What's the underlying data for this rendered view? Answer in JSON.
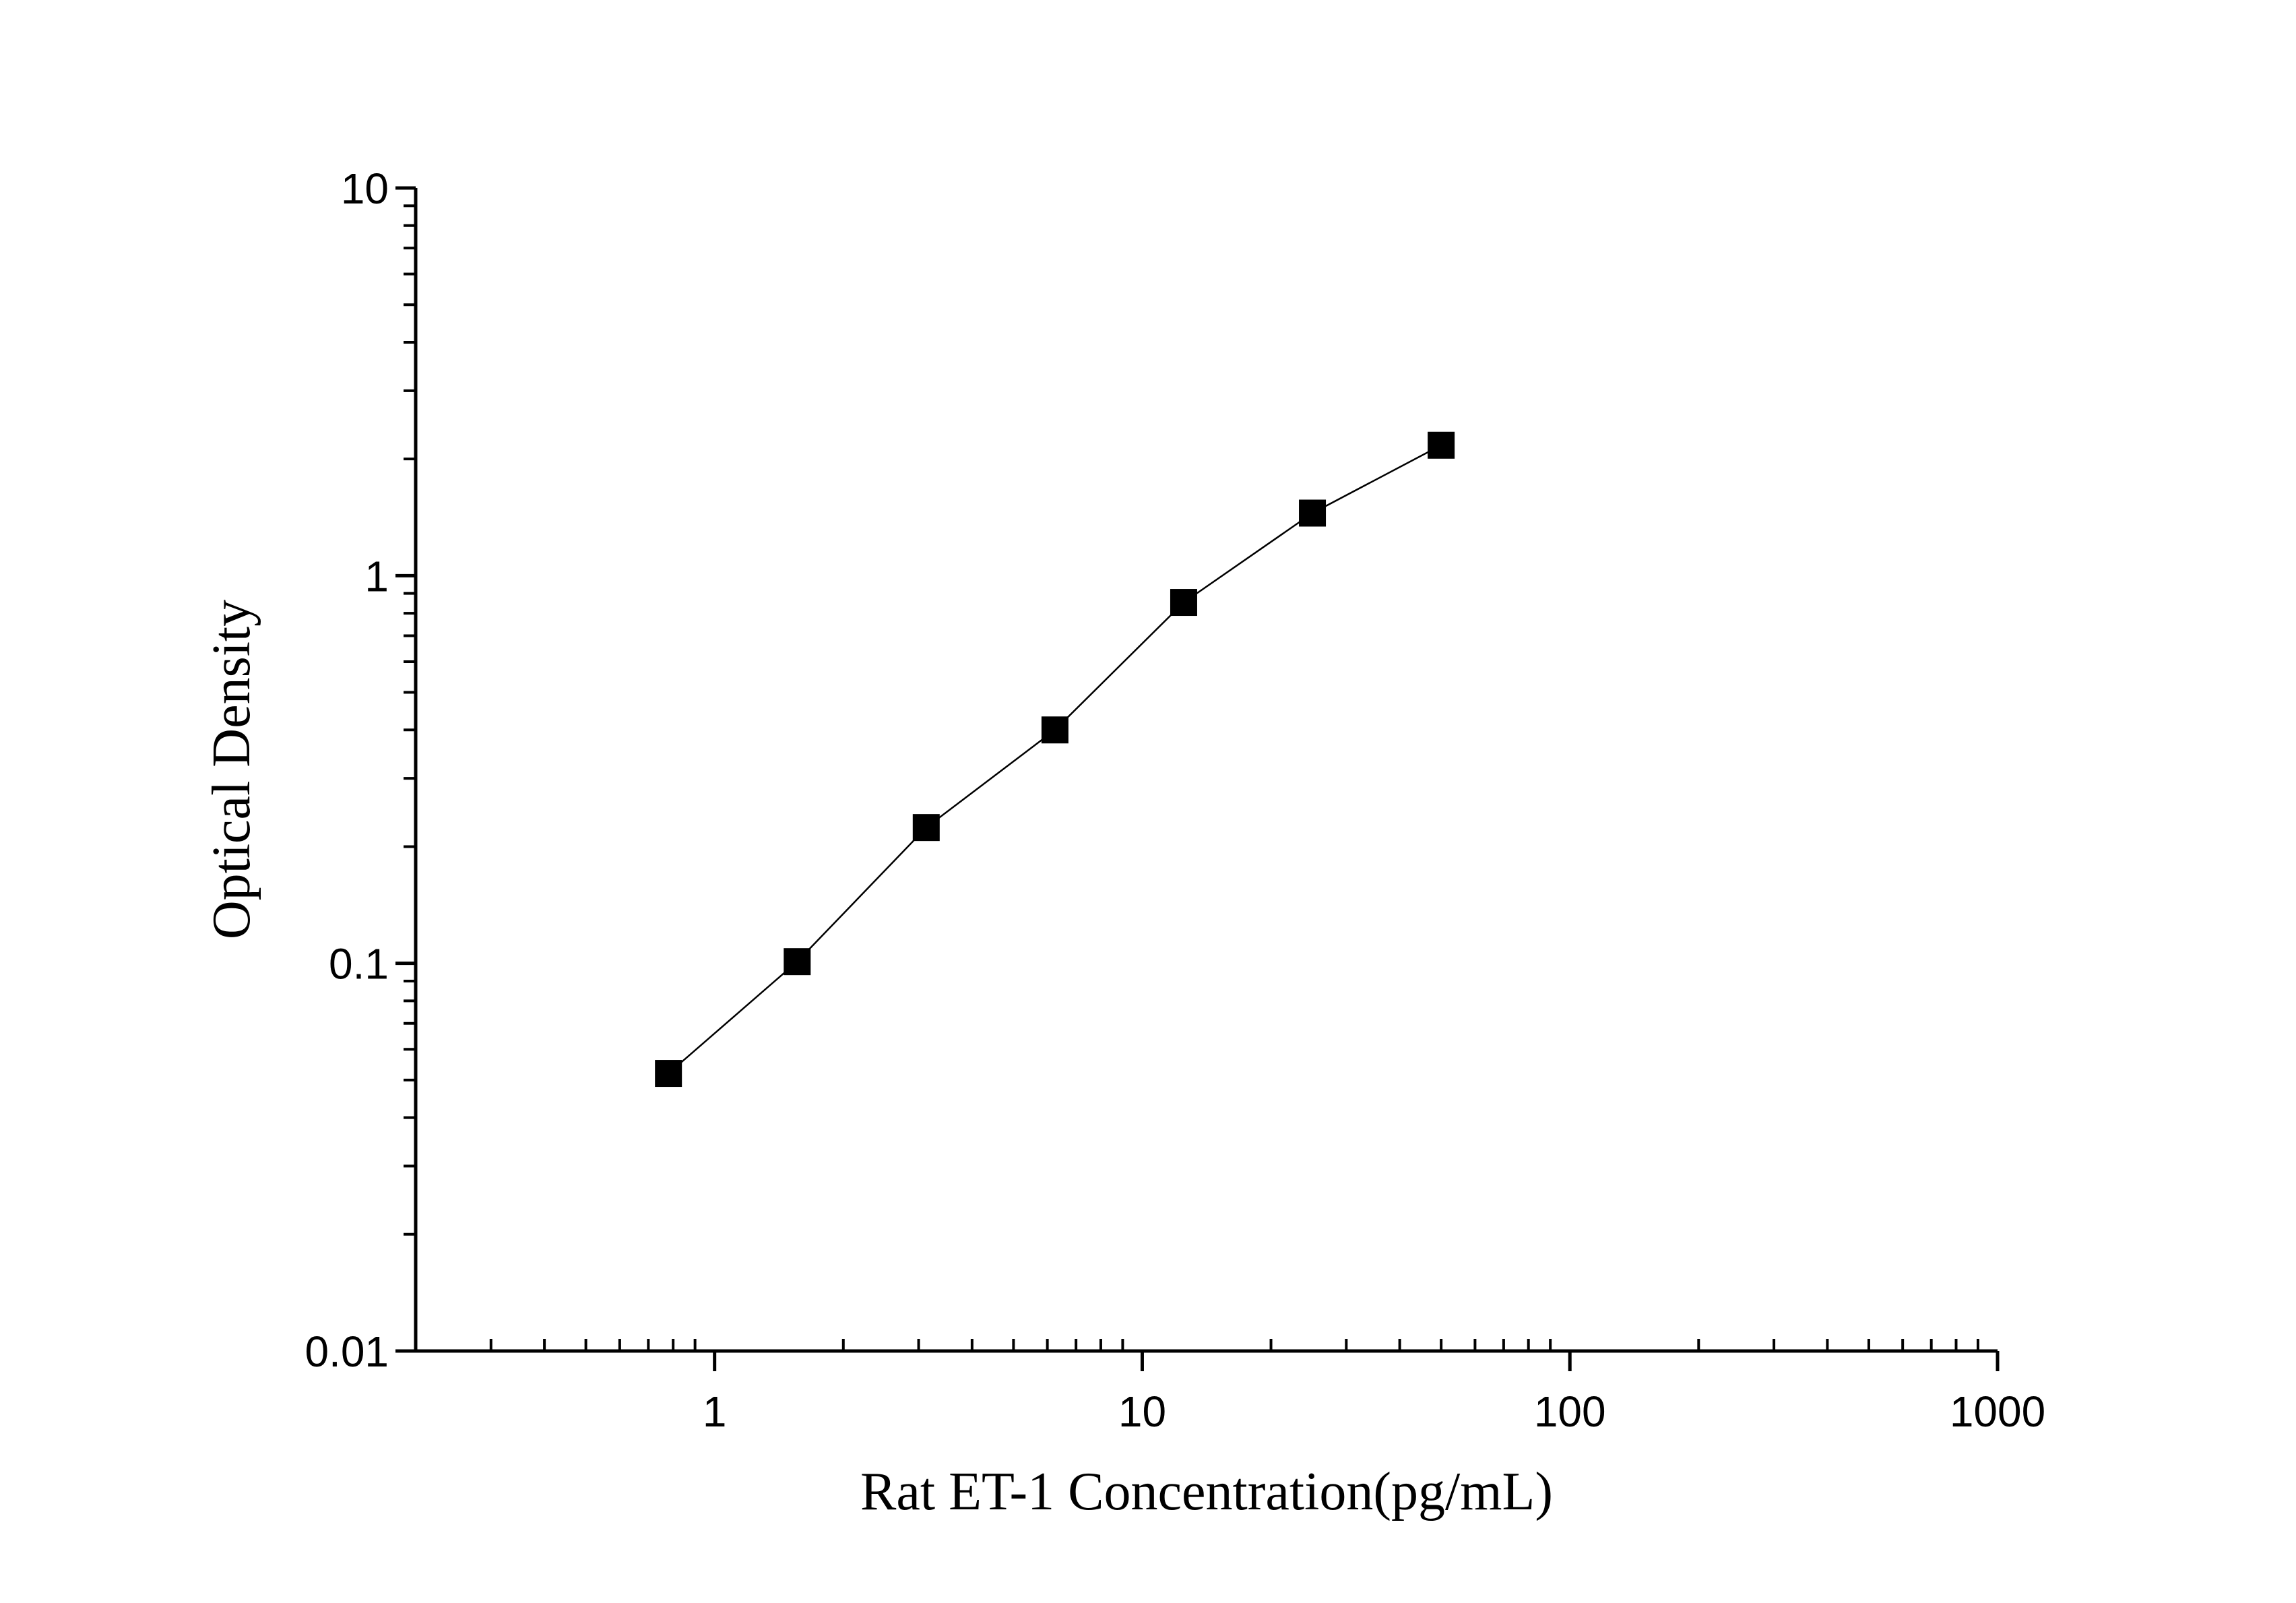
{
  "chart_data": {
    "type": "line",
    "x_label": "Rat ET-1 Concentration(pg/mL)",
    "y_label": "Optical Density",
    "x": [
      0.78,
      1.56,
      3.125,
      6.25,
      12.5,
      25,
      50
    ],
    "series": [
      {
        "color": "#000000",
        "values": [
          0.052,
          0.101,
          0.224,
          0.4,
          0.853,
          1.45,
          2.17
        ]
      }
    ],
    "xlim": [
      0.2,
      1000
    ],
    "xticks": [
      1,
      10,
      100,
      1000
    ],
    "ylim": [
      0.01,
      10
    ],
    "yticks": [
      0.01,
      0.1,
      1,
      10
    ],
    "xscale": "log",
    "yscale": "log",
    "marker": "square",
    "grid": false
  }
}
